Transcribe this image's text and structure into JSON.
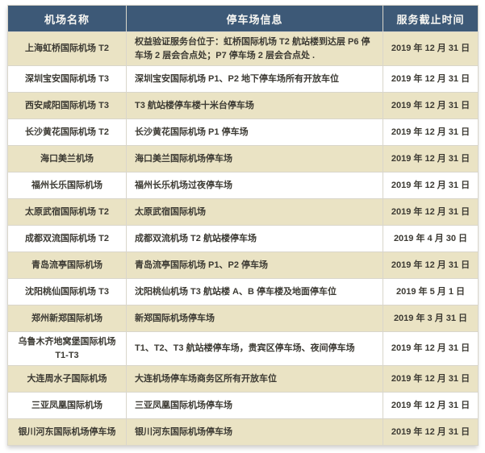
{
  "colors": {
    "header_bg": "#3d5977",
    "header_text": "#f8f7f3",
    "row_alt_bg": "#eae3c4",
    "row_bg": "#ffffff",
    "body_text": "#3c3a33",
    "grid_line": "#d9d6cb"
  },
  "table": {
    "columns": [
      {
        "key": "name",
        "label": "机场名称"
      },
      {
        "key": "info",
        "label": "停车场信息"
      },
      {
        "key": "deadline",
        "label": "服务截止时间"
      }
    ],
    "rows": [
      {
        "name": "上海虹桥国际机场 T2",
        "info": "权益验证服务台位于：虹桥国际机场 T2 航站楼到达层 P6 停车场 2 层会合点处；P7 停车场 2 层会合点处 .",
        "deadline": "2019 年 12 月 31 日"
      },
      {
        "name": "深圳宝安国际机场 T3",
        "info": "深圳宝安国际机场 P1、P2 地下停车场所有开放车位",
        "deadline": "2019 年 12 月 31 日"
      },
      {
        "name": "西安咸阳国际机场 T3",
        "info": "T3 航站楼停车楼十米台停车场",
        "deadline": "2019 年 12 月 31 日"
      },
      {
        "name": "长沙黄花国际机场 T2",
        "info": "长沙黄花国际机场 P1 停车场",
        "deadline": "2019 年 12 月 31 日"
      },
      {
        "name": "海口美兰机场",
        "info": "海口美兰国际机场停车场",
        "deadline": "2019 年 12 月 31 日"
      },
      {
        "name": "福州长乐国际机场",
        "info": "福州长乐机场过夜停车场",
        "deadline": "2019 年 12 月 31 日"
      },
      {
        "name": "太原武宿国际机场 T2",
        "info": "太原武宿国际机场",
        "deadline": "2019 年 12 月 31 日"
      },
      {
        "name": "成都双流国际机场 T2",
        "info": "成都双流机场 T2 航站楼停车场",
        "deadline": "2019 年 4 月 30 日"
      },
      {
        "name": "青岛流亭国际机场",
        "info": "青岛流亭国际机场 P1、P2 停车场",
        "deadline": "2019 年 12 月 31 日"
      },
      {
        "name": "沈阳桃仙国际机场 T3",
        "info": "沈阳桃仙机场 T3 航站楼 A、B 停车楼及地面停车位",
        "deadline": "2019 年 5 月 1 日"
      },
      {
        "name": "郑州新郑国际机场",
        "info": "新郑国际机场停车场",
        "deadline": "2019 年 3 月 31 日"
      },
      {
        "name": "乌鲁木齐地窝堡国际机场 T1-T3",
        "info": "T1、T2、T3 航站楼停车场，贵宾区停车场、夜间停车场",
        "deadline": "2019 年 12 月 31 日"
      },
      {
        "name": "大连周水子国际机场",
        "info": "大连机场停车场商务区所有开放车位",
        "deadline": "2019 年 12 月 31 日"
      },
      {
        "name": "三亚凤凰国际机场",
        "info": "三亚凤凰国际机场停车场",
        "deadline": "2019 年 12 月 31 日"
      },
      {
        "name": "银川河东国际机场停车场",
        "info": "银川河东国际机场停车场",
        "deadline": "2019 年 12 月 31 日"
      }
    ]
  }
}
